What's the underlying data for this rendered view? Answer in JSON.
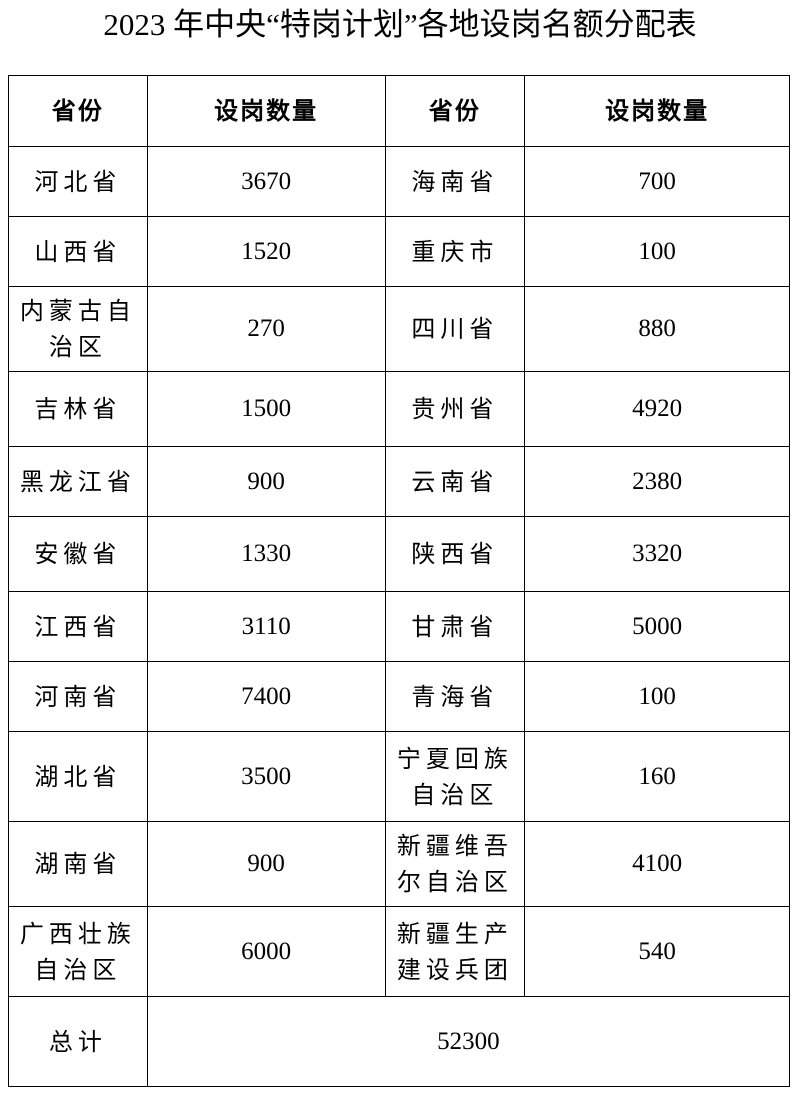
{
  "title": "2023 年中央“特岗计划”各地设岗名额分配表",
  "headers": [
    "省份",
    "设岗数量",
    "省份",
    "设岗数量"
  ],
  "rows": [
    {
      "p1": "河北省",
      "n1": "3670",
      "p2": "海南省",
      "n2": "700"
    },
    {
      "p1": "山西省",
      "n1": "1520",
      "p2": "重庆市",
      "n2": "100"
    },
    {
      "p1": "内蒙古自治区",
      "n1": "270",
      "p2": "四川省",
      "n2": "880"
    },
    {
      "p1": "吉林省",
      "n1": "1500",
      "p2": "贵州省",
      "n2": "4920"
    },
    {
      "p1": "黑龙江省",
      "n1": "900",
      "p2": "云南省",
      "n2": "2380"
    },
    {
      "p1": "安徽省",
      "n1": "1330",
      "p2": "陕西省",
      "n2": "3320"
    },
    {
      "p1": "江西省",
      "n1": "3110",
      "p2": "甘肃省",
      "n2": "5000"
    },
    {
      "p1": "河南省",
      "n1": "7400",
      "p2": "青海省",
      "n2": "100"
    },
    {
      "p1": "湖北省",
      "n1": "3500",
      "p2": "宁夏回族自治区",
      "n2": "160"
    },
    {
      "p1": "湖南省",
      "n1": "900",
      "p2": "新疆维吾尔自治区",
      "n2": "4100"
    },
    {
      "p1": "广西壮族自治区",
      "n1": "6000",
      "p2": "新疆生产建设兵团",
      "n2": "540"
    }
  ],
  "total": {
    "label": "总计",
    "value": "52300"
  }
}
